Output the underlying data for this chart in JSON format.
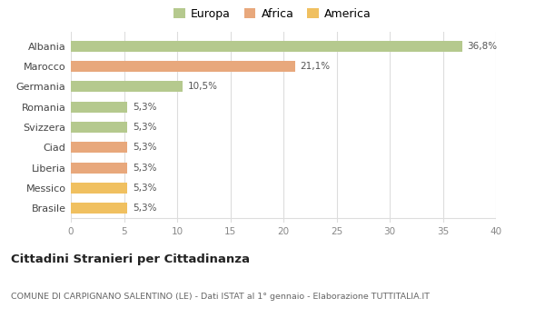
{
  "categories": [
    "Brasile",
    "Messico",
    "Liberia",
    "Ciad",
    "Svizzera",
    "Romania",
    "Germania",
    "Marocco",
    "Albania"
  ],
  "values": [
    5.3,
    5.3,
    5.3,
    5.3,
    5.3,
    5.3,
    10.5,
    21.1,
    36.8
  ],
  "labels": [
    "5,3%",
    "5,3%",
    "5,3%",
    "5,3%",
    "5,3%",
    "5,3%",
    "10,5%",
    "21,1%",
    "36,8%"
  ],
  "colors": [
    "#f0c060",
    "#f0c060",
    "#e8a87c",
    "#e8a87c",
    "#b5c98e",
    "#b5c98e",
    "#b5c98e",
    "#e8a87c",
    "#b5c98e"
  ],
  "legend": [
    {
      "label": "Europa",
      "color": "#b5c98e"
    },
    {
      "label": "Africa",
      "color": "#e8a87c"
    },
    {
      "label": "America",
      "color": "#f0c060"
    }
  ],
  "xlim": [
    0,
    40
  ],
  "xticks": [
    0,
    5,
    10,
    15,
    20,
    25,
    30,
    35,
    40
  ],
  "title": "Cittadini Stranieri per Cittadinanza",
  "subtitle": "COMUNE DI CARPIGNANO SALENTINO (LE) - Dati ISTAT al 1° gennaio - Elaborazione TUTTITALIA.IT",
  "background_color": "#ffffff",
  "grid_color": "#dddddd"
}
